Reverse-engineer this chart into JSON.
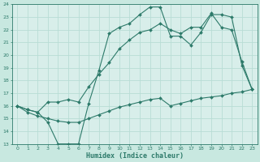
{
  "title": "",
  "xlabel": "Humidex (Indice chaleur)",
  "ylabel": "",
  "bg_color": "#c8e8e0",
  "plot_bg_color": "#d8eeea",
  "line_color": "#2d7a6a",
  "grid_color": "#b8ddd5",
  "ylim": [
    13,
    24
  ],
  "xlim": [
    -0.5,
    23.5
  ],
  "yticks": [
    13,
    14,
    15,
    16,
    17,
    18,
    19,
    20,
    21,
    22,
    23,
    24
  ],
  "xticks": [
    0,
    1,
    2,
    3,
    4,
    5,
    6,
    7,
    8,
    9,
    10,
    11,
    12,
    13,
    14,
    15,
    16,
    17,
    18,
    19,
    20,
    21,
    22,
    23
  ],
  "line1_x": [
    0,
    1,
    2,
    3,
    4,
    5,
    6,
    7,
    8,
    9,
    10,
    11,
    12,
    13,
    14,
    15,
    16,
    17,
    18,
    19,
    20,
    21,
    22,
    23
  ],
  "line1_y": [
    16,
    15.7,
    15.5,
    14.7,
    13.0,
    13.0,
    13.0,
    16.2,
    18.8,
    21.7,
    22.2,
    22.5,
    23.2,
    23.8,
    23.8,
    21.5,
    21.5,
    20.8,
    21.8,
    23.2,
    23.2,
    23.0,
    19.2,
    17.3
  ],
  "line2_x": [
    0,
    1,
    2,
    3,
    4,
    5,
    6,
    7,
    8,
    9,
    10,
    11,
    12,
    13,
    14,
    15,
    16,
    17,
    18,
    19,
    20,
    21,
    22,
    23
  ],
  "line2_y": [
    16,
    15.7,
    15.5,
    16.3,
    16.3,
    16.5,
    16.3,
    17.5,
    18.5,
    19.4,
    20.5,
    21.2,
    21.8,
    22.0,
    22.5,
    22.0,
    21.7,
    22.2,
    22.2,
    23.3,
    22.2,
    22.0,
    19.5,
    17.3
  ],
  "line3_x": [
    0,
    1,
    2,
    3,
    4,
    5,
    6,
    7,
    8,
    9,
    10,
    11,
    12,
    13,
    14,
    15,
    16,
    17,
    18,
    19,
    20,
    21,
    22,
    23
  ],
  "line3_y": [
    16,
    15.5,
    15.2,
    15.0,
    14.8,
    14.7,
    14.7,
    15.0,
    15.3,
    15.6,
    15.9,
    16.1,
    16.3,
    16.5,
    16.6,
    16.0,
    16.2,
    16.4,
    16.6,
    16.7,
    16.8,
    17.0,
    17.1,
    17.3
  ]
}
